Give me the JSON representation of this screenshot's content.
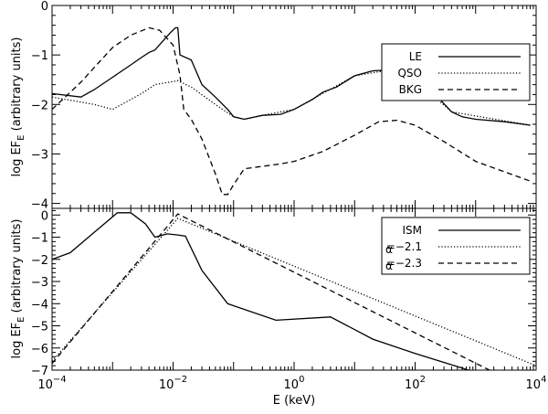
{
  "chart_data": [
    {
      "type": "line",
      "xscale": "log",
      "xlim": [
        0.0001,
        10000
      ],
      "ylim": [
        -4.1,
        0
      ],
      "ylabel": "log EF",
      "ylabel_sub": "E",
      "ylabel_suffix": " (arbitrary units)",
      "xlabel": "",
      "yticks": [
        0,
        -1,
        -2,
        -3,
        -4
      ],
      "ytick_labels": [
        "0",
        "−1",
        "−2",
        "−3",
        "−4"
      ],
      "legend": {
        "position": "top-right"
      },
      "series": [
        {
          "name": "LE",
          "style": "solid",
          "x": [
            0.0001,
            0.0003,
            0.0005,
            0.001,
            0.002,
            0.003,
            0.004,
            0.005,
            0.007,
            0.009,
            0.011,
            0.012,
            0.013,
            0.02,
            0.03,
            0.05,
            0.08,
            0.1,
            0.15,
            0.3,
            0.6,
            1,
            2,
            3,
            5,
            10,
            20,
            40,
            70,
            100,
            200,
            400,
            600,
            1000,
            3000,
            8000
          ],
          "y": [
            -1.78,
            -1.85,
            -1.7,
            -1.45,
            -1.2,
            -1.05,
            -0.95,
            -0.9,
            -0.7,
            -0.55,
            -0.45,
            -0.45,
            -1.0,
            -1.1,
            -1.6,
            -1.85,
            -2.1,
            -2.25,
            -2.3,
            -2.22,
            -2.2,
            -2.1,
            -1.9,
            -1.75,
            -1.65,
            -1.42,
            -1.32,
            -1.3,
            -1.38,
            -1.5,
            -1.75,
            -2.15,
            -2.25,
            -2.3,
            -2.35,
            -2.42
          ]
        },
        {
          "name": "QSO",
          "style": "dotted",
          "x": [
            0.0001,
            0.0005,
            0.001,
            0.003,
            0.005,
            0.012,
            0.02,
            0.05,
            0.1,
            0.15,
            0.3,
            1,
            10,
            40,
            100,
            400,
            8000
          ],
          "y": [
            -1.85,
            -2.0,
            -2.1,
            -1.78,
            -1.6,
            -1.52,
            -1.65,
            -2.0,
            -2.25,
            -2.3,
            -2.22,
            -2.1,
            -1.42,
            -1.3,
            -1.5,
            -2.15,
            -2.42
          ]
        },
        {
          "name": "BKG",
          "style": "dashed",
          "x": [
            0.0001,
            0.0003,
            0.0005,
            0.001,
            0.002,
            0.004,
            0.006,
            0.01,
            0.013,
            0.015,
            0.02,
            0.03,
            0.05,
            0.065,
            0.08,
            0.1,
            0.15,
            0.3,
            0.6,
            1,
            3,
            10,
            25,
            50,
            100,
            300,
            1000,
            8000
          ],
          "y": [
            -2.1,
            -1.55,
            -1.25,
            -0.85,
            -0.6,
            -0.45,
            -0.5,
            -0.8,
            -1.4,
            -2.1,
            -2.3,
            -2.7,
            -3.4,
            -3.82,
            -3.82,
            -3.62,
            -3.3,
            -3.25,
            -3.2,
            -3.15,
            -2.95,
            -2.62,
            -2.35,
            -2.32,
            -2.42,
            -2.75,
            -3.15,
            -3.55
          ]
        }
      ]
    },
    {
      "type": "line",
      "xscale": "log",
      "xlim": [
        0.0001,
        10000
      ],
      "ylim": [
        -7,
        0.3
      ],
      "ylabel": "log EF",
      "ylabel_sub": "E",
      "ylabel_suffix": " (arbitrary units)",
      "xlabel": "E (keV)",
      "yticks": [
        0,
        -1,
        -2,
        -3,
        -4,
        -5,
        -6,
        -7
      ],
      "ytick_labels": [
        "0",
        "−1",
        "−2",
        "−3",
        "−4",
        "−5",
        "−6",
        "−7"
      ],
      "xticks": [
        0.0001,
        0.01,
        1,
        100,
        10000
      ],
      "xtick_base": [
        "10",
        "10",
        "10",
        "10",
        "10"
      ],
      "xtick_exp": [
        "−4",
        "−2",
        "0",
        "2",
        "4"
      ],
      "legend": {
        "position": "top-right"
      },
      "series": [
        {
          "name": "ISM",
          "prefix": "",
          "style": "solid",
          "x": [
            0.0001,
            0.0002,
            0.0004,
            0.0012,
            0.002,
            0.0035,
            0.005,
            0.008,
            0.012,
            0.016,
            0.03,
            0.08,
            0.5,
            4,
            20,
            100,
            1000
          ],
          "y": [
            -2.0,
            -1.7,
            -1.0,
            0.1,
            0.1,
            -0.4,
            -1.0,
            -0.85,
            -0.9,
            -0.95,
            -2.5,
            -4.0,
            -4.75,
            -4.6,
            -5.6,
            -6.25,
            -7.1
          ]
        },
        {
          "name": "=−2.1",
          "prefix": "α",
          "style": "dotted",
          "x": [
            0.0001,
            0.012,
            10000
          ],
          "y": [
            -6.6,
            -0.15,
            -6.8
          ]
        },
        {
          "name": "=−2.3",
          "prefix": "α",
          "style": "dashed",
          "x": [
            0.0001,
            0.012,
            2000
          ],
          "y": [
            -6.7,
            0.05,
            -7.1
          ]
        }
      ]
    }
  ]
}
